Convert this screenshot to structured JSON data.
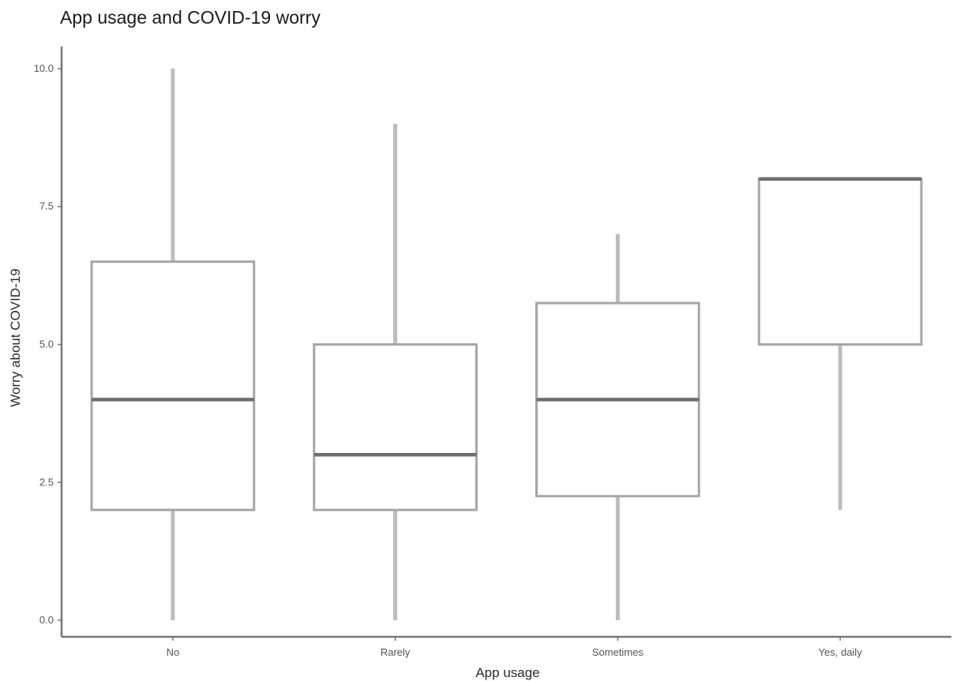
{
  "chart_data": {
    "type": "box",
    "title": "App usage and COVID-19 worry",
    "xlabel": "App usage",
    "ylabel": "Worry about COVID-19",
    "ylim": [
      -0.3,
      10.4
    ],
    "yticks": [
      "0.0",
      "2.5",
      "5.0",
      "7.5",
      "10.0"
    ],
    "ytick_values": [
      0,
      2.5,
      5,
      7.5,
      10
    ],
    "grid": false,
    "legend": "none",
    "categories": [
      "No",
      "Rarely",
      "Sometimes",
      "Yes, daily"
    ],
    "boxes": [
      {
        "category": "No",
        "min": 0,
        "q1": 2,
        "median": 4,
        "q3": 6.5,
        "max": 10
      },
      {
        "category": "Rarely",
        "min": 0,
        "q1": 2,
        "median": 3,
        "q3": 5,
        "max": 9
      },
      {
        "category": "Sometimes",
        "min": 0,
        "q1": 2.25,
        "median": 4,
        "q3": 5.75,
        "max": 7
      },
      {
        "category": "Yes, daily",
        "min": 2,
        "q1": 5,
        "median": 8,
        "q3": 8,
        "max": 8
      }
    ]
  }
}
